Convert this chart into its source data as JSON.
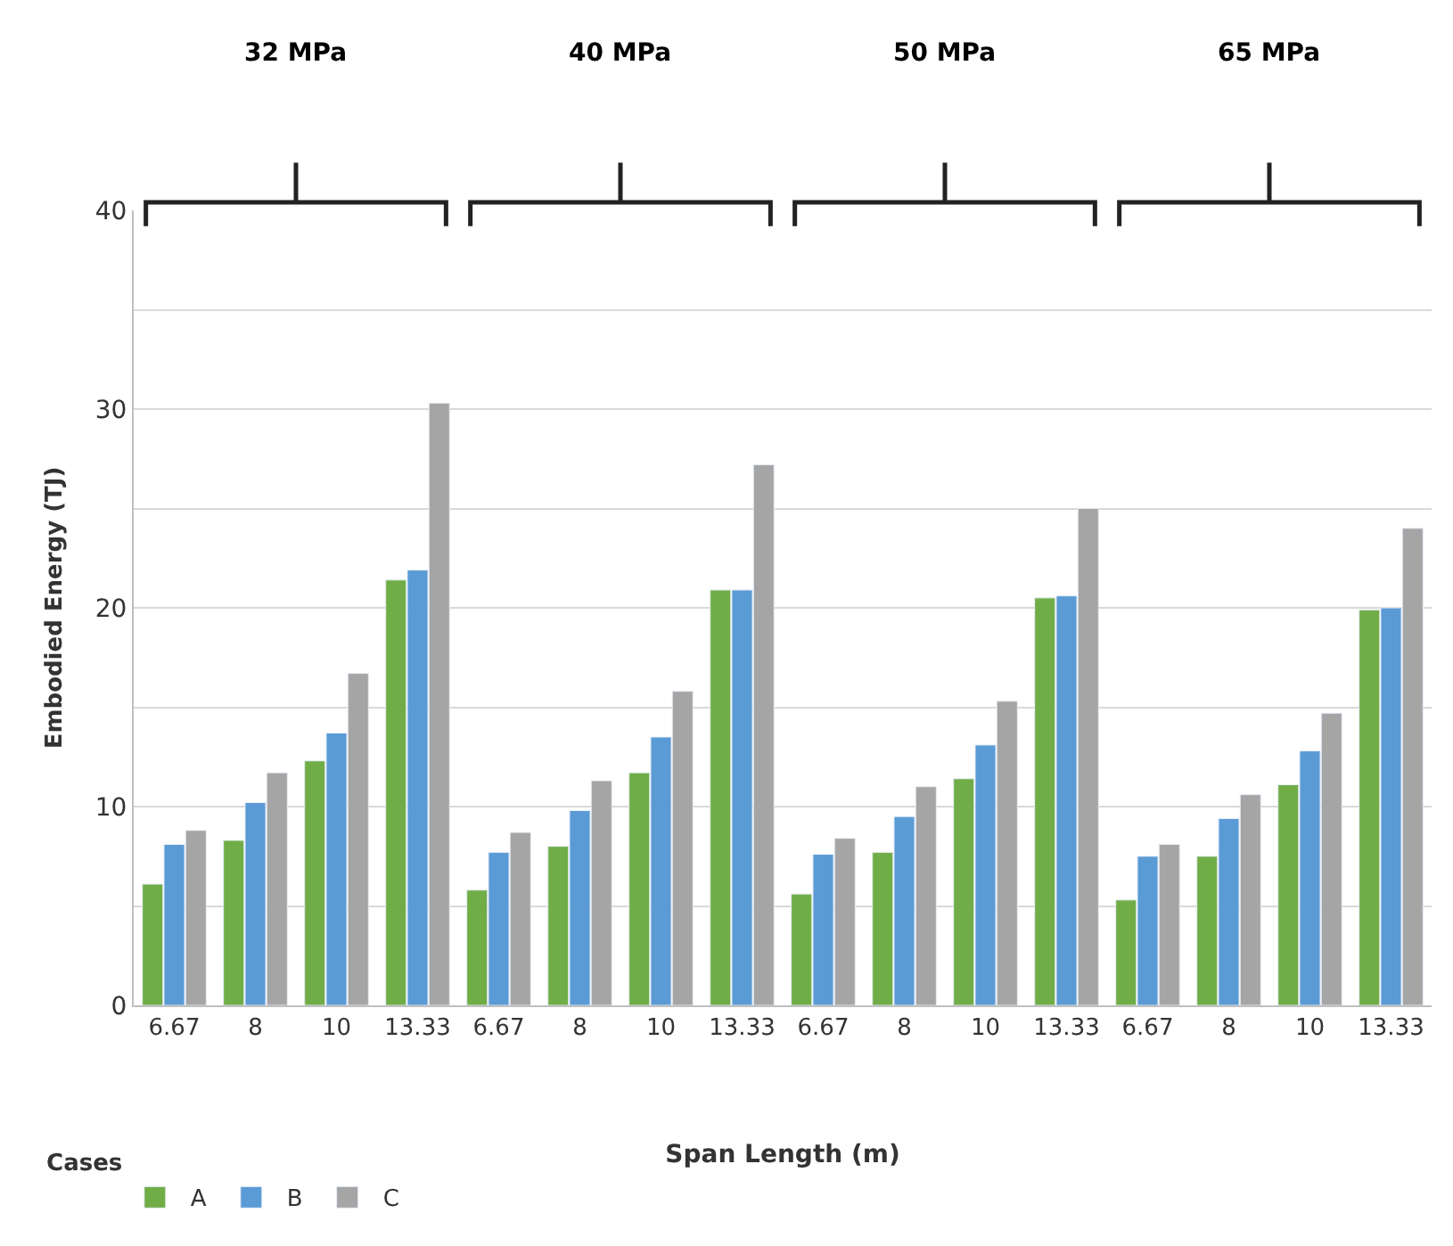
{
  "chart_data": {
    "type": "bar",
    "categories": [
      "6.67",
      "8",
      "10",
      "13.33",
      "6.67",
      "8",
      "10",
      "13.33",
      "6.67",
      "8",
      "10",
      "13.33",
      "6.67",
      "8",
      "10",
      "13.33"
    ],
    "series": [
      {
        "name": "A",
        "color": "#70ad47",
        "values": [
          6.1,
          8.3,
          12.3,
          21.4,
          5.8,
          8.0,
          11.7,
          20.9,
          5.6,
          7.7,
          11.4,
          20.5,
          5.3,
          7.5,
          11.1,
          19.9
        ]
      },
      {
        "name": "B",
        "color": "#5b9bd5",
        "values": [
          8.1,
          10.2,
          13.7,
          21.9,
          7.7,
          9.8,
          13.5,
          20.9,
          7.6,
          9.5,
          13.1,
          20.6,
          7.5,
          9.4,
          12.8,
          20.0
        ]
      },
      {
        "name": "C",
        "color": "#a5a5a5",
        "values": [
          8.8,
          11.7,
          16.7,
          30.3,
          8.7,
          11.3,
          15.8,
          27.2,
          8.4,
          11.0,
          15.3,
          25.0,
          8.1,
          10.6,
          14.7,
          24.0
        ]
      }
    ],
    "annotations": [
      "32 MPa",
      "40 MPa",
      "50 MPa",
      "65 MPa"
    ],
    "xlabel": "Span Length (m)",
    "ylabel": "Embodied Energy (TJ)",
    "legend_title": "Cases",
    "ylim": [
      0,
      40
    ],
    "yticks": [
      0,
      {
        "value": 5,
        "label": null
      },
      10,
      {
        "value": 15,
        "label": null
      },
      20,
      {
        "value": 25,
        "label": null
      },
      30,
      {
        "value": 35,
        "label": null
      },
      40
    ],
    "grid": "y",
    "legend": "bottom left"
  }
}
